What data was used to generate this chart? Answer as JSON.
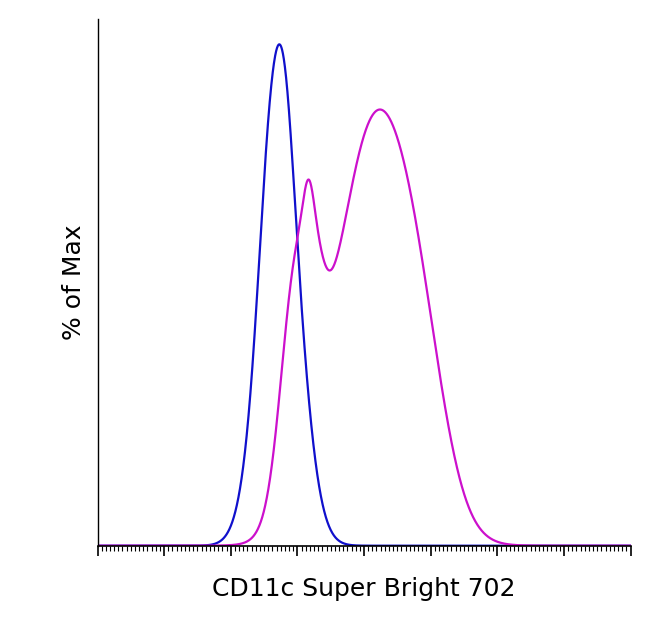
{
  "title": "",
  "xlabel": "CD11c Super Bright 702",
  "ylabel": "% of Max",
  "xlabel_fontsize": 18,
  "ylabel_fontsize": 18,
  "blue_color": "#1010CC",
  "magenta_color": "#CC10CC",
  "line_width": 1.6,
  "xlim": [
    0,
    1023
  ],
  "ylim": [
    0,
    1.05
  ],
  "background_color": "#ffffff"
}
